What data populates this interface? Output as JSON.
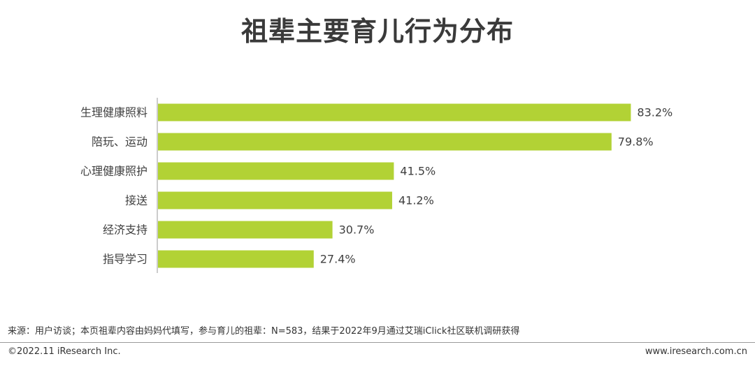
{
  "title": "祖辈主要育儿行为分布",
  "colors": {
    "bar": "#b2d235",
    "axis": "#999999",
    "text": "#404040"
  },
  "chart_data": {
    "type": "bar",
    "orientation": "horizontal",
    "categories": [
      "生理健康照料",
      "陪玩、运动",
      "心理健康照护",
      "接送",
      "经济支持",
      "指导学习"
    ],
    "values": [
      83.2,
      79.8,
      41.5,
      41.2,
      30.7,
      27.4
    ],
    "value_labels": [
      "83.2%",
      "79.8%",
      "41.5%",
      "41.2%",
      "30.7%",
      "27.4%"
    ],
    "unit": "%",
    "xlim": [
      0,
      100
    ],
    "grid": false,
    "legend": "none"
  },
  "footer": {
    "source": "来源：用户访谈；本页祖辈内容由妈妈代填写，参与育儿的祖辈：N=583，结果于2022年9月通过艾瑞iClick社区联机调研获得",
    "copyright": "©2022.11 iResearch Inc.",
    "website": "www.iresearch.com.cn"
  }
}
